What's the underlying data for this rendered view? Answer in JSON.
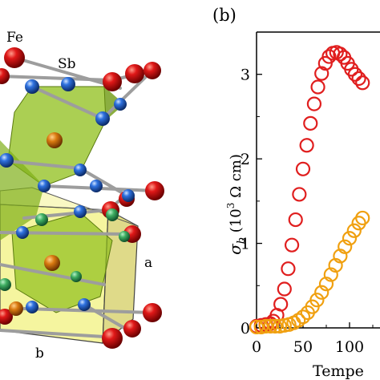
{
  "structure_panel": {
    "labels": {
      "fe": "Fe",
      "sb": "Sb",
      "axis_a": "a",
      "axis_b": "b"
    },
    "colors": {
      "fe_atom": "#d81414",
      "sb_atom": "#2c6bd8",
      "octahedron": "#8fbf1a",
      "cell_face": "#e4e640",
      "bond": "#b5b5b5"
    }
  },
  "chart_panel": {
    "panel_label": "(b)",
    "ylabel_symbol": "σ",
    "ylabel_subscript": "b",
    "ylabel_units_prefix": " (10",
    "ylabel_units_exp": "3",
    "ylabel_units_suffix": " Ω cm)",
    "xlabel": "Tempe"
  },
  "chart_data": {
    "type": "scatter",
    "xlabel": "Temperature",
    "ylabel": "σ_b (10^3 Ω cm)",
    "xlim": [
      0,
      150
    ],
    "ylim": [
      0,
      3.5
    ],
    "xticks": [
      0,
      50,
      100
    ],
    "yticks": [
      0,
      1,
      2,
      3
    ],
    "series": [
      {
        "color": "#e01e1e",
        "x": [
          0,
          5,
          10,
          15,
          18,
          22,
          26,
          30,
          34,
          38,
          42,
          46,
          50,
          54,
          58,
          62,
          66,
          70,
          74,
          78,
          82,
          86,
          90,
          94,
          98,
          102,
          106,
          110,
          114
        ],
        "y": [
          0.02,
          0.03,
          0.04,
          0.05,
          0.08,
          0.15,
          0.28,
          0.46,
          0.7,
          0.98,
          1.28,
          1.58,
          1.88,
          2.16,
          2.42,
          2.65,
          2.85,
          3.01,
          3.13,
          3.21,
          3.25,
          3.26,
          3.24,
          3.2,
          3.13,
          3.06,
          3.0,
          2.95,
          2.9
        ]
      },
      {
        "color": "#f0a010",
        "x": [
          0,
          5,
          10,
          15,
          20,
          25,
          30,
          35,
          40,
          45,
          50,
          55,
          60,
          65,
          70,
          75,
          80,
          85,
          90,
          95,
          100,
          105,
          110,
          114
        ],
        "y": [
          0.01,
          0.01,
          0.02,
          0.02,
          0.02,
          0.02,
          0.03,
          0.04,
          0.06,
          0.09,
          0.13,
          0.18,
          0.25,
          0.33,
          0.42,
          0.52,
          0.63,
          0.74,
          0.85,
          0.96,
          1.06,
          1.15,
          1.24,
          1.3
        ]
      }
    ]
  }
}
